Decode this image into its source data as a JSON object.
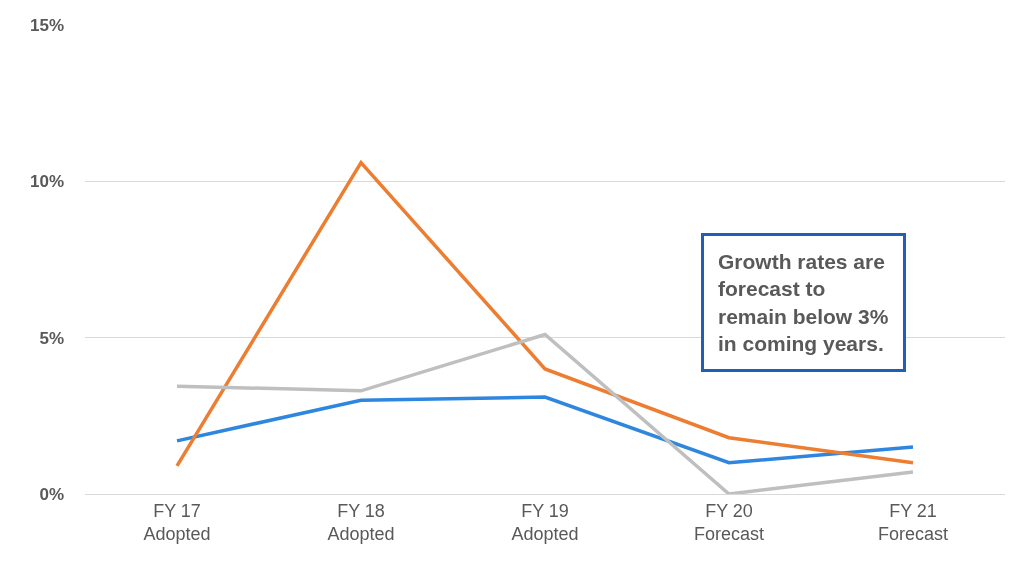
{
  "chart_data": {
    "type": "line",
    "categories": [
      "FY 17 Adopted",
      "FY 18 Adopted",
      "FY 19 Adopted",
      "FY 20 Forecast",
      "FY 21 Forecast"
    ],
    "series": [
      {
        "color": "#2e86de",
        "values": [
          1.7,
          3.0,
          3.1,
          1.0,
          1.5
        ]
      },
      {
        "color": "#ed7d31",
        "values": [
          0.9,
          10.6,
          4.0,
          1.8,
          1.0
        ]
      },
      {
        "color": "#bfbfbf",
        "values": [
          3.45,
          3.3,
          5.1,
          0,
          0.7
        ]
      }
    ],
    "ylim": [
      0,
      15
    ],
    "yticks": [
      {
        "value": 0,
        "label": "0%"
      },
      {
        "value": 5,
        "label": "5%"
      },
      {
        "value": 10,
        "label": "10%"
      },
      {
        "value": 15,
        "label": "15%"
      }
    ],
    "grid": "y",
    "marker": "none",
    "line_style": "solid",
    "annotations": [
      "Growth rates are forecast to remain below 3% in coming years."
    ]
  }
}
